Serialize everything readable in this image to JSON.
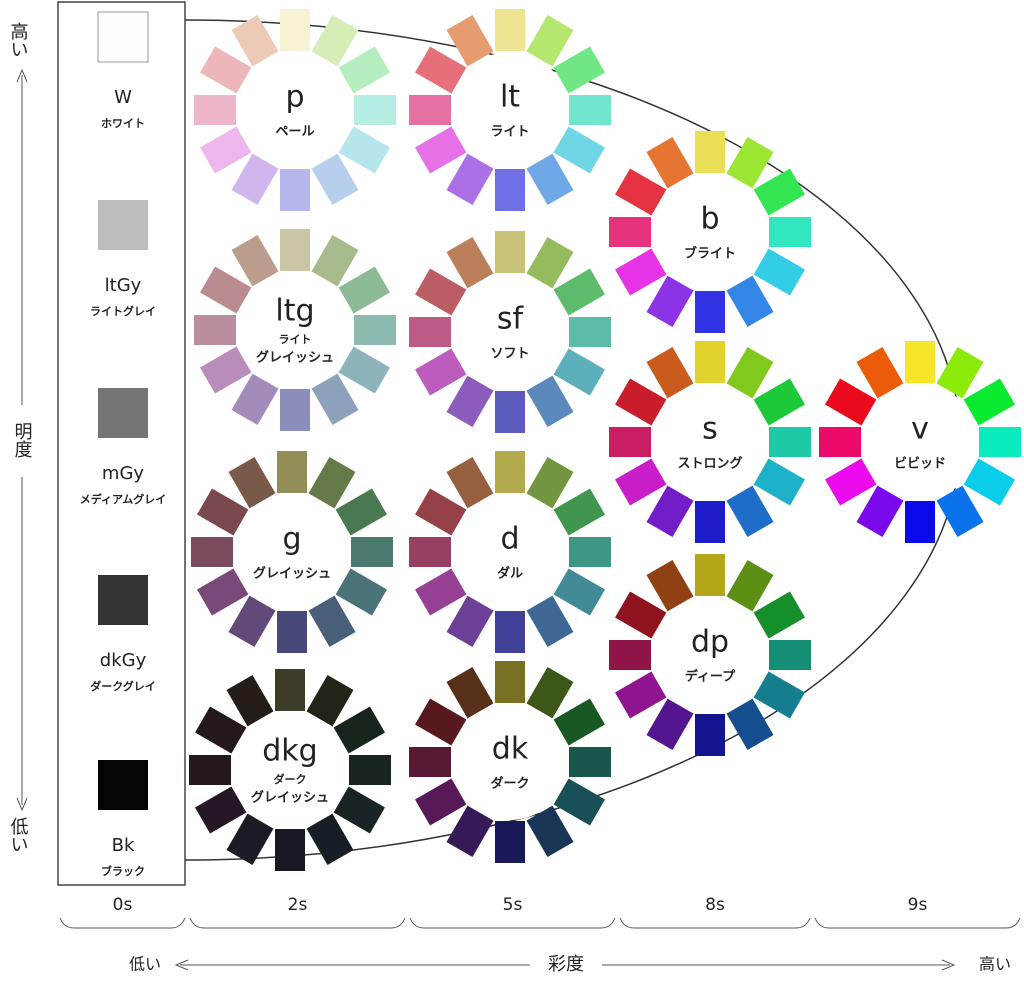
{
  "lightness_axis": {
    "label": "明度",
    "high": "高い",
    "low": "低い"
  },
  "achromatic": [
    {
      "code": "W",
      "name": "ホワイト"
    },
    {
      "code": "ltGy",
      "name": "ライトグレイ"
    },
    {
      "code": "mGy",
      "name": "メディアムグレイ"
    },
    {
      "code": "dkGy",
      "name": "ダークグレイ"
    },
    {
      "code": "Bk",
      "name": "ブラック"
    }
  ],
  "tones": [
    {
      "code": "p",
      "name": [
        "ペール"
      ]
    },
    {
      "code": "lt",
      "name": [
        "ライト"
      ]
    },
    {
      "code": "b",
      "name": [
        "ブライト"
      ]
    },
    {
      "code": "ltg",
      "name": [
        "ライト",
        "グレイッシュ"
      ]
    },
    {
      "code": "sf",
      "name": [
        "ソフト"
      ]
    },
    {
      "code": "s",
      "name": [
        "ストロング"
      ]
    },
    {
      "code": "v",
      "name": [
        "ビビッド"
      ]
    },
    {
      "code": "g",
      "name": [
        "グレイッシュ"
      ]
    },
    {
      "code": "d",
      "name": [
        "ダル"
      ]
    },
    {
      "code": "dp",
      "name": [
        "ディープ"
      ]
    },
    {
      "code": "dkg",
      "name": [
        "ダーク",
        "グレイッシュ"
      ]
    },
    {
      "code": "dk",
      "name": [
        "ダーク"
      ]
    }
  ],
  "chroma_scale": [
    "0s",
    "2s",
    "5s",
    "8s",
    "9s"
  ],
  "chroma_axis": {
    "label": "彩度",
    "low": "低い",
    "high": "高い"
  }
}
